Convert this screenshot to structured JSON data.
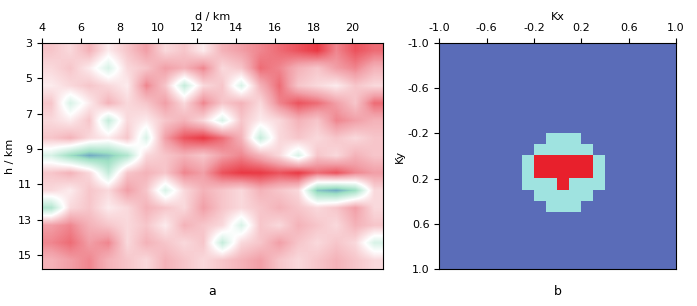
{
  "chart_data": [
    {
      "type": "heatmap",
      "title": "a",
      "x_label": "d / km",
      "y_label": "h / km",
      "xlim": [
        4,
        21.6
      ],
      "ylim": [
        15.8,
        3
      ],
      "xticks": [
        4,
        6,
        8,
        10,
        12,
        14,
        16,
        18,
        20
      ],
      "yticks": [
        3,
        5,
        7,
        9,
        11,
        13,
        15
      ],
      "colors": [
        "#2f5fc4",
        "#9fe0c4",
        "#ffffff",
        "#f2a0a8",
        "#e8202c"
      ],
      "color_range": [
        -1,
        1
      ],
      "cells": [
        [
          0.3,
          0.2,
          0.4,
          0.1,
          0.3,
          0.5,
          0.2,
          0.3,
          0.1,
          0.4,
          0.5,
          0.6,
          0.7,
          0.8,
          0.9,
          0.6,
          0.8,
          0.7
        ],
        [
          0.2,
          0.3,
          0.1,
          -0.2,
          0.2,
          0.3,
          0.5,
          0.4,
          0.6,
          0.2,
          0.3,
          0.7,
          0.6,
          0.4,
          0.3,
          0.5,
          0.6,
          0.4
        ],
        [
          0.1,
          0.2,
          0.3,
          0.2,
          0.1,
          0.6,
          0.3,
          -0.3,
          0.2,
          0.3,
          -0.2,
          0.4,
          0.7,
          0.3,
          0.2,
          0.1,
          0.3,
          0.2
        ],
        [
          0.3,
          -0.2,
          0.1,
          0.4,
          0.2,
          0.3,
          0.5,
          0.2,
          0.6,
          0.3,
          0.4,
          0.2,
          0.6,
          0.8,
          0.7,
          0.5,
          0.3,
          0.7
        ],
        [
          0.2,
          0.1,
          0.3,
          -0.3,
          0.2,
          0.1,
          0.3,
          0.4,
          0.2,
          -0.2,
          0.3,
          0.1,
          0.2,
          0.4,
          0.3,
          0.6,
          0.5,
          0.4
        ],
        [
          0.3,
          0.4,
          0.2,
          0.1,
          0.3,
          -0.2,
          0.5,
          0.8,
          0.9,
          0.7,
          0.4,
          -0.3,
          0.2,
          0.3,
          0.2,
          0.3,
          0.2,
          0.3
        ],
        [
          -0.2,
          -0.5,
          -0.7,
          -0.6,
          -0.4,
          0.2,
          0.3,
          0.4,
          0.3,
          0.5,
          0.6,
          0.4,
          0.2,
          -0.2,
          0.3,
          0.2,
          0.4,
          0.3
        ],
        [
          0.3,
          0.4,
          0.2,
          -0.3,
          0.3,
          0.4,
          0.3,
          0.6,
          0.5,
          0.8,
          0.9,
          0.9,
          0.8,
          0.9,
          0.7,
          0.8,
          0.6,
          0.5
        ],
        [
          0.2,
          0.1,
          0.3,
          0.2,
          0.5,
          0.3,
          -0.2,
          0.2,
          0.4,
          0.3,
          0.2,
          0.4,
          0.3,
          0.2,
          -0.6,
          -0.7,
          -0.5,
          0.2
        ],
        [
          -0.4,
          0.2,
          0.3,
          0.1,
          0.2,
          0.4,
          0.3,
          0.2,
          0.5,
          0.3,
          0.2,
          0.3,
          0.4,
          0.3,
          0.2,
          0.3,
          0.5,
          0.2
        ],
        [
          0.5,
          0.6,
          0.4,
          0.3,
          0.2,
          0.3,
          0.1,
          0.4,
          0.3,
          0.2,
          -0.2,
          0.3,
          0.2,
          0.4,
          0.3,
          0.2,
          0.4,
          0.3
        ],
        [
          0.6,
          0.7,
          0.5,
          0.6,
          0.2,
          0.4,
          0.3,
          0.2,
          0.3,
          -0.3,
          0.2,
          0.3,
          0.5,
          0.3,
          0.2,
          0.3,
          0.2,
          -0.2
        ],
        [
          0.4,
          0.5,
          0.6,
          0.4,
          0.3,
          0.2,
          0.4,
          0.3,
          0.2,
          0.3,
          0.4,
          0.5,
          0.3,
          0.2,
          0.3,
          0.4,
          0.3,
          0.2
        ]
      ]
    },
    {
      "type": "heatmap",
      "title": "b",
      "x_label": "Kx",
      "y_label": "Ky",
      "xlim": [
        -1.0,
        1.0
      ],
      "ylim": [
        1.0,
        -1.0
      ],
      "xticks": [
        -1.0,
        -0.6,
        -0.2,
        0.2,
        0.6,
        1.0
      ],
      "yticks": [
        -1.0,
        -0.6,
        -0.2,
        0.2,
        0.6,
        1.0
      ],
      "colors": [
        "#5a6cb8",
        "#9fe3e0",
        "#e8202c"
      ],
      "color_range": [
        0,
        3
      ],
      "cells": [
        [
          0,
          0,
          0,
          0,
          0,
          0,
          0,
          0,
          0,
          0,
          0,
          0,
          0,
          0,
          0,
          0,
          0,
          0,
          0,
          0
        ],
        [
          0,
          0,
          0,
          0,
          0,
          0,
          0,
          0,
          0,
          0,
          0,
          0,
          0,
          0,
          0,
          0,
          0,
          0,
          0,
          0
        ],
        [
          0,
          0,
          0,
          0,
          0,
          0,
          0,
          0,
          0,
          0,
          0,
          0,
          0,
          0,
          0,
          0,
          0,
          0,
          0,
          0
        ],
        [
          0,
          0,
          0,
          0,
          0,
          0,
          0,
          0,
          0,
          0,
          0,
          0,
          0,
          0,
          0,
          0,
          0,
          0,
          0,
          0
        ],
        [
          0,
          0,
          0,
          0,
          0,
          0,
          0,
          0,
          0,
          0,
          0,
          0,
          0,
          0,
          0,
          0,
          0,
          0,
          0,
          0
        ],
        [
          0,
          0,
          0,
          0,
          0,
          0,
          0,
          0,
          0,
          0,
          0,
          0,
          0,
          0,
          0,
          0,
          0,
          0,
          0,
          0
        ],
        [
          0,
          0,
          0,
          0,
          0,
          0,
          0,
          0,
          0,
          0,
          0,
          0,
          0,
          0,
          0,
          0,
          0,
          0,
          0,
          0
        ],
        [
          0,
          0,
          0,
          0,
          0,
          0,
          0,
          0,
          0,
          0,
          0,
          0,
          0,
          0,
          0,
          0,
          0,
          0,
          0,
          0
        ],
        [
          0,
          0,
          0,
          0,
          0,
          0,
          0,
          0,
          0,
          1,
          1,
          1,
          0,
          0,
          0,
          0,
          0,
          0,
          0,
          0
        ],
        [
          0,
          0,
          0,
          0,
          0,
          0,
          0,
          0,
          1,
          1,
          1,
          1,
          1,
          0,
          0,
          0,
          0,
          0,
          0,
          0
        ],
        [
          0,
          0,
          0,
          0,
          0,
          0,
          0,
          1,
          2,
          2,
          2,
          2,
          2,
          1,
          0,
          0,
          0,
          0,
          0,
          0
        ],
        [
          0,
          0,
          0,
          0,
          0,
          0,
          0,
          1,
          2,
          2,
          2,
          2,
          2,
          1,
          0,
          0,
          0,
          0,
          0,
          0
        ],
        [
          0,
          0,
          0,
          0,
          0,
          0,
          0,
          1,
          1,
          1,
          2,
          1,
          1,
          1,
          0,
          0,
          0,
          0,
          0,
          0
        ],
        [
          0,
          0,
          0,
          0,
          0,
          0,
          0,
          0,
          1,
          1,
          1,
          1,
          1,
          0,
          0,
          0,
          0,
          0,
          0,
          0
        ],
        [
          0,
          0,
          0,
          0,
          0,
          0,
          0,
          0,
          0,
          1,
          1,
          1,
          0,
          0,
          0,
          0,
          0,
          0,
          0,
          0
        ],
        [
          0,
          0,
          0,
          0,
          0,
          0,
          0,
          0,
          0,
          0,
          0,
          0,
          0,
          0,
          0,
          0,
          0,
          0,
          0,
          0
        ],
        [
          0,
          0,
          0,
          0,
          0,
          0,
          0,
          0,
          0,
          0,
          0,
          0,
          0,
          0,
          0,
          0,
          0,
          0,
          0,
          0
        ],
        [
          0,
          0,
          0,
          0,
          0,
          0,
          0,
          0,
          0,
          0,
          0,
          0,
          0,
          0,
          0,
          0,
          0,
          0,
          0,
          0
        ],
        [
          0,
          0,
          0,
          0,
          0,
          0,
          0,
          0,
          0,
          0,
          0,
          0,
          0,
          0,
          0,
          0,
          0,
          0,
          0,
          0
        ],
        [
          0,
          0,
          0,
          0,
          0,
          0,
          0,
          0,
          0,
          0,
          0,
          0,
          0,
          0,
          0,
          0,
          0,
          0,
          0,
          0
        ]
      ]
    }
  ]
}
